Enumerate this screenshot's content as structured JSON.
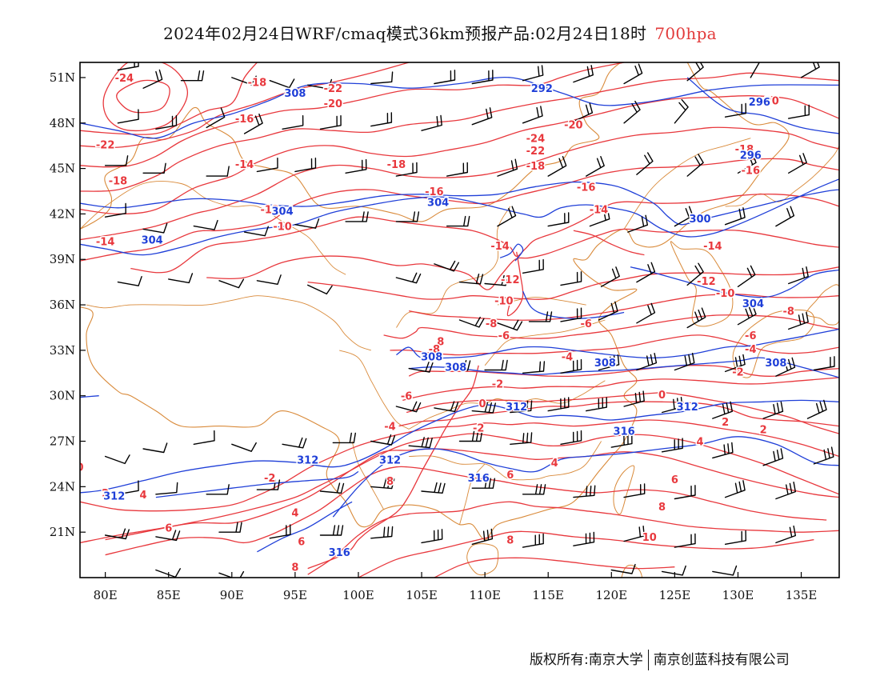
{
  "header": {
    "title": "2024年02月24日WRF/cmaq模式36km预报产品:02月24日18时",
    "level": "700hpa"
  },
  "footer": {
    "owner": "版权所有:南京大学",
    "partner": "南京创蓝科技有限公司"
  },
  "map": {
    "projection": "lat-lon",
    "lon_range": [
      78,
      138
    ],
    "lat_range": [
      18,
      52
    ],
    "lon_ticks": [
      "80E",
      "85E",
      "90E",
      "95E",
      "100E",
      "105E",
      "110E",
      "115E",
      "120E",
      "125E",
      "130E",
      "135E"
    ],
    "lat_ticks": [
      "51N",
      "48N",
      "45N",
      "42N",
      "39N",
      "36N",
      "33N",
      "30N",
      "27N",
      "24N",
      "21N"
    ],
    "colors": {
      "temperature": "#e8383d",
      "geopotential": "#1f3fd8",
      "boundaries": "#d98a3a",
      "wind_barbs": "#000000"
    },
    "layers": [
      "temperature contours (°C)",
      "geopotential height contours (dagpm)",
      "wind barbs",
      "boundaries"
    ],
    "temperature_labels": [
      "-24",
      "-22",
      "-20",
      "-18",
      "-16",
      "-14",
      "-12",
      "-10",
      "-8",
      "-6",
      "-4",
      "-2",
      "0",
      "2",
      "4",
      "6",
      "8",
      "10"
    ],
    "height_labels": [
      "292",
      "296",
      "300",
      "304",
      "308",
      "312",
      "316"
    ]
  }
}
